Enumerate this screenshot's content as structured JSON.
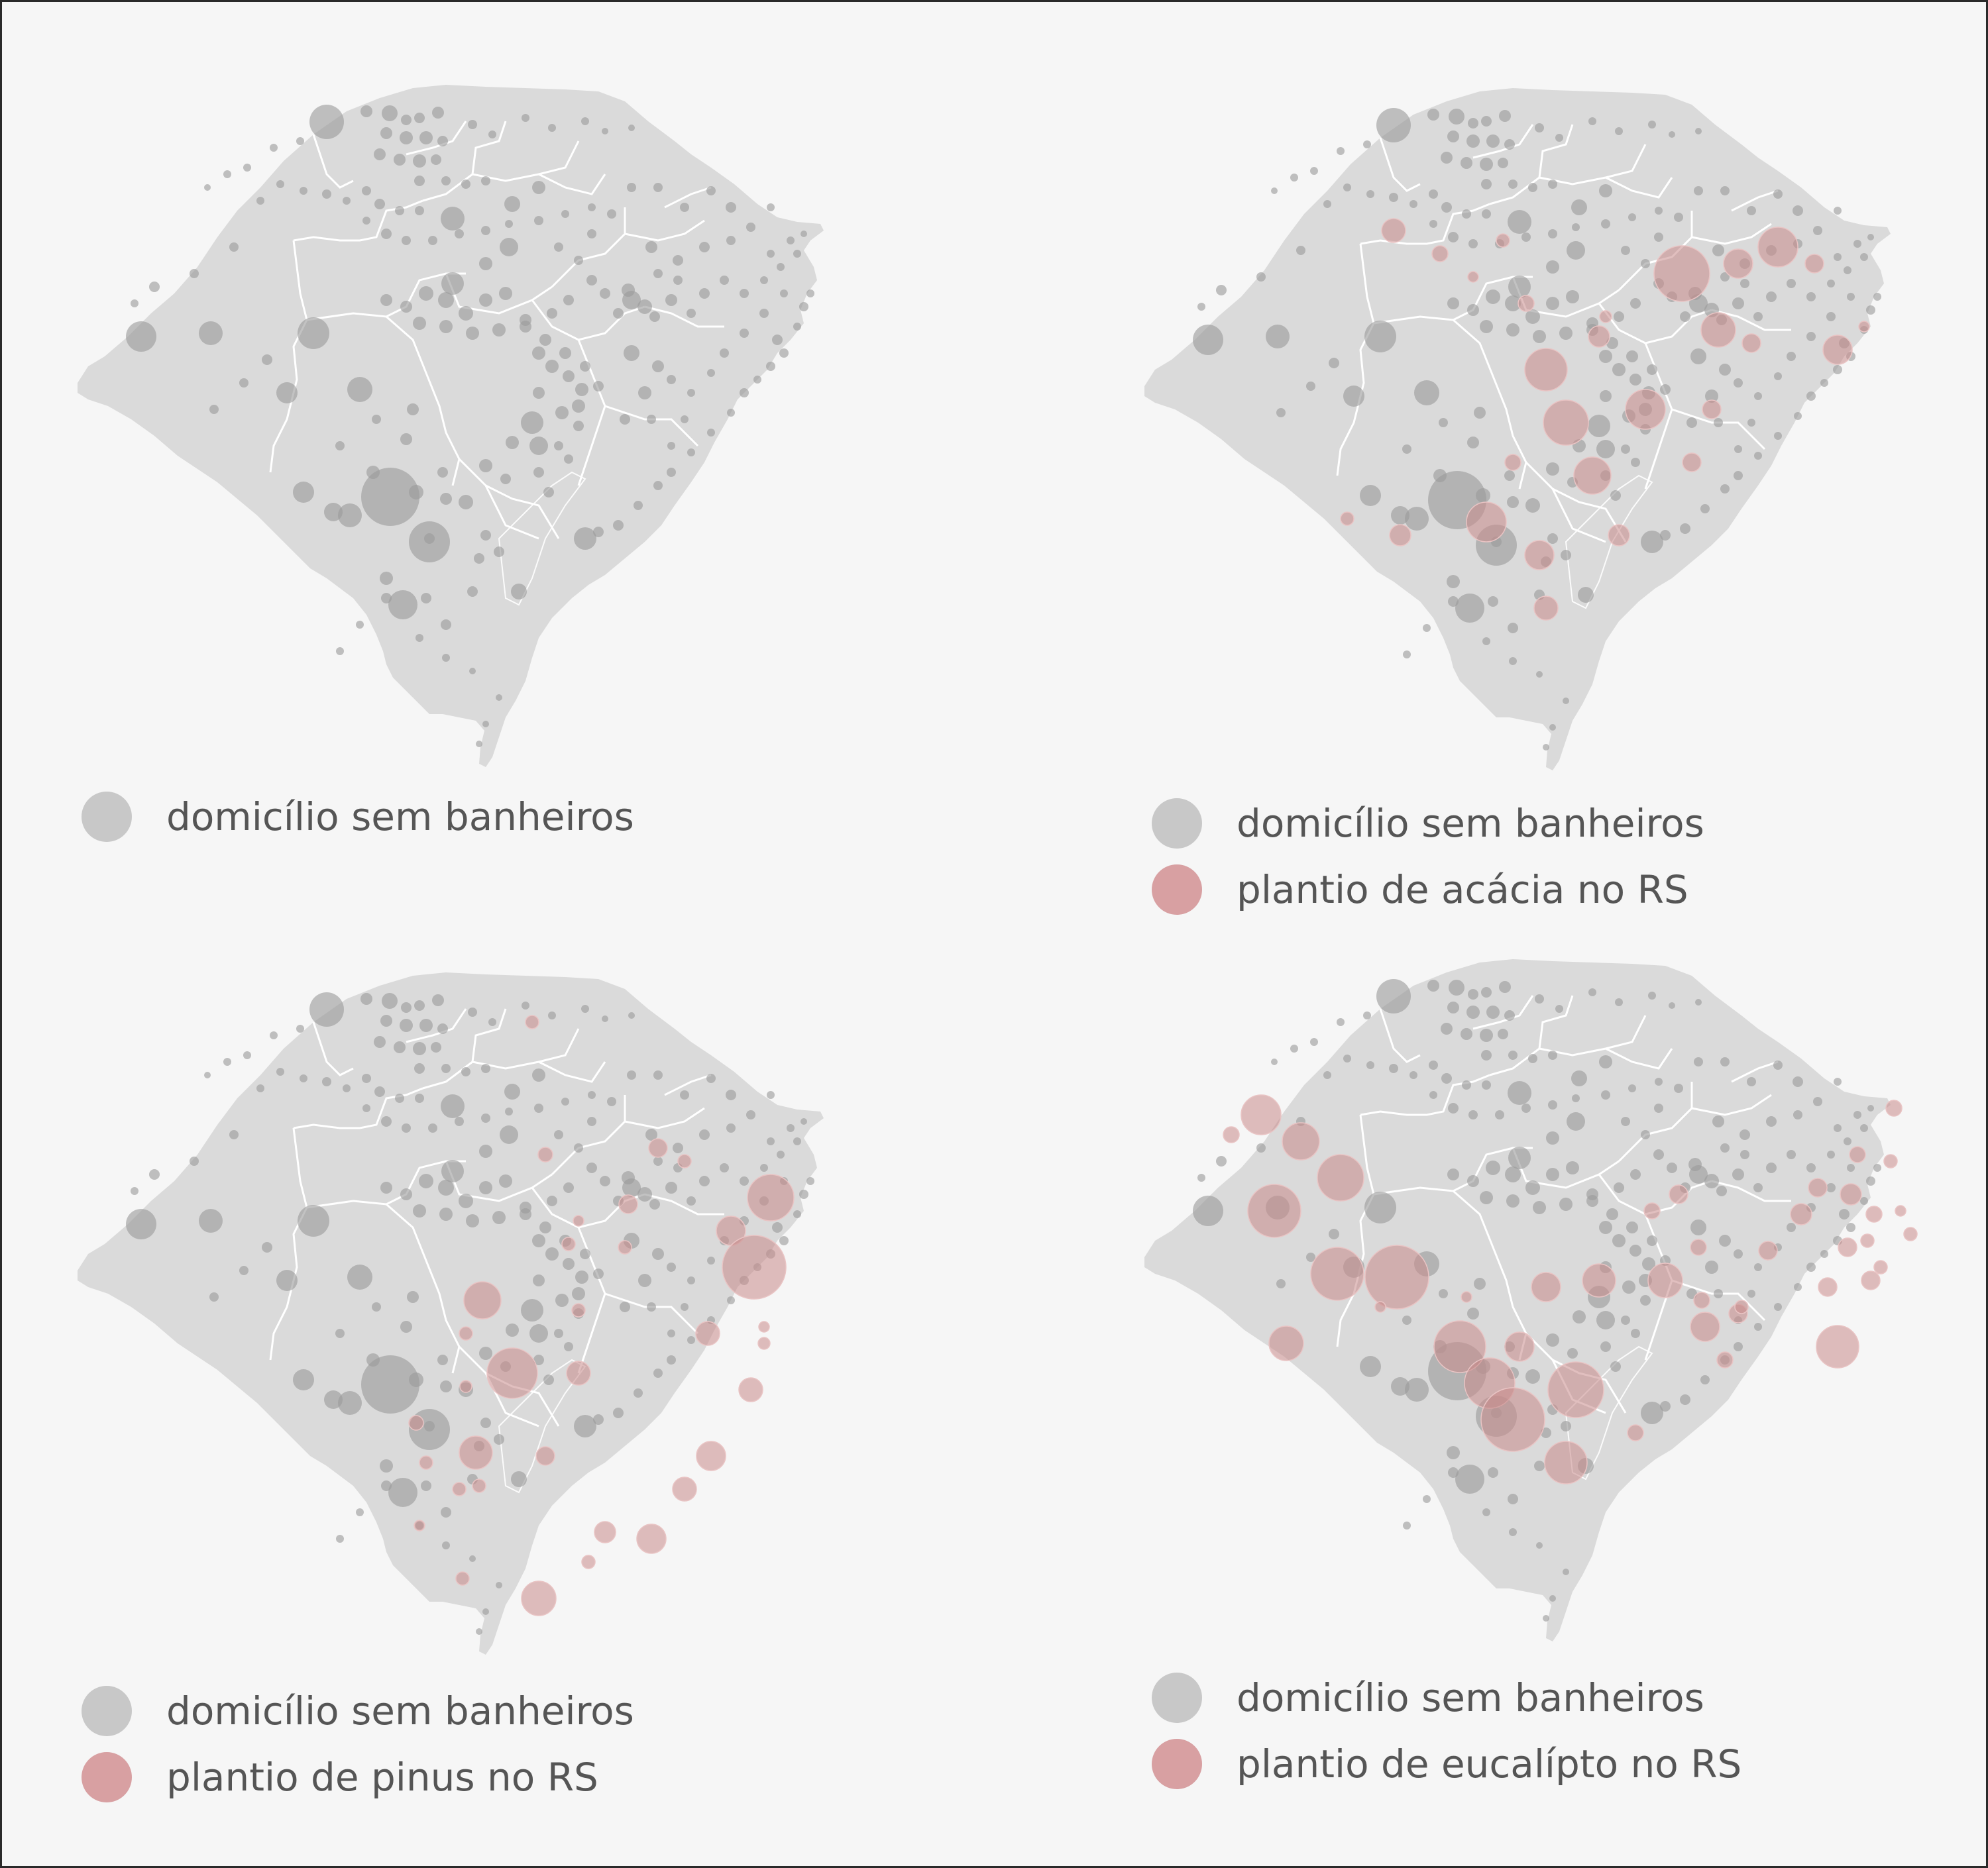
{
  "colors": {
    "background": "#f6f6f6",
    "land": "#dadada",
    "borders": "#ffffff",
    "households_bubble": "#9a9a9a",
    "planting_bubble": "#c98a8a",
    "legend_households_swatch": "#c8c8c8",
    "legend_planting_swatch": "#d8a0a2",
    "legend_text": "#555555"
  },
  "panels": [
    {
      "id": "households-only",
      "legend": [
        {
          "label": "domicílio sem banheiros",
          "swatch": "households"
        }
      ],
      "overlay": null
    },
    {
      "id": "acacia",
      "legend": [
        {
          "label": "domicílio sem banheiros",
          "swatch": "households"
        },
        {
          "label": "plantio de acácia no RS",
          "swatch": "planting"
        }
      ],
      "overlay": "acacia"
    },
    {
      "id": "pinus",
      "legend": [
        {
          "label": "domicílio sem banheiros",
          "swatch": "households"
        },
        {
          "label": "plantio de pinus no RS",
          "swatch": "planting"
        }
      ],
      "overlay": "pinus"
    },
    {
      "id": "eucalipto",
      "legend": [
        {
          "label": "domicílio sem banheiros",
          "swatch": "households"
        },
        {
          "label": "plantio de eucalípto no RS",
          "swatch": "planting"
        }
      ],
      "overlay": "eucalipto"
    }
  ]
}
